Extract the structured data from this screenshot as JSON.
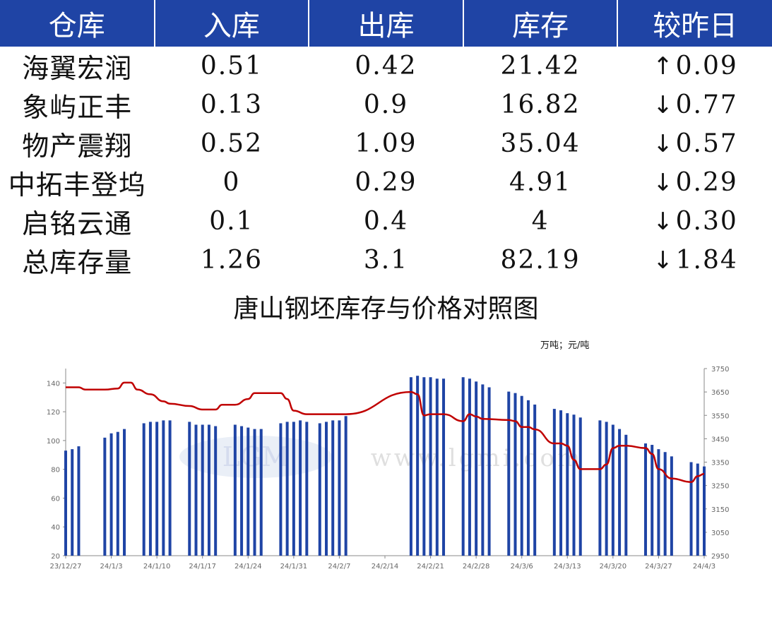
{
  "table": {
    "headers": [
      "仓库",
      "入库",
      "出库",
      "库存",
      "较昨日"
    ],
    "rows": [
      {
        "name": "海翼宏润",
        "in": "0.51",
        "out": "0.42",
        "stock": "21.42",
        "dir": "up",
        "arrow": "↑",
        "change": "0.09"
      },
      {
        "name": "象屿正丰",
        "in": "0.13",
        "out": "0.9",
        "stock": "16.82",
        "dir": "down",
        "arrow": "↓",
        "change": "0.77"
      },
      {
        "name": "物产震翔",
        "in": "0.52",
        "out": "1.09",
        "stock": "35.04",
        "dir": "down",
        "arrow": "↓",
        "change": "0.57"
      },
      {
        "name": "中拓丰登坞",
        "in": "0",
        "out": "0.29",
        "stock": "4.91",
        "dir": "down",
        "arrow": "↓",
        "change": "0.29"
      },
      {
        "name": "启铭云通",
        "in": "0.1",
        "out": "0.4",
        "stock": "4",
        "dir": "down",
        "arrow": "↓",
        "change": "0.30"
      },
      {
        "name": "总库存量",
        "in": "1.26",
        "out": "3.1",
        "stock": "82.19",
        "dir": "down",
        "arrow": "↓",
        "change": "1.84"
      }
    ],
    "colors": {
      "header_bg": "#1f44a5",
      "up": "#e00000",
      "down": "#1aa64a"
    }
  },
  "chart_data": {
    "type": "bar+line",
    "title": "唐山钢坯库存与价格对照图",
    "unit_label": "万吨；元/吨",
    "watermark": {
      "logo_text": "LGM",
      "url_text": "www.lgmi.com"
    },
    "x_ticks": [
      "23/12/27",
      "24/1/3",
      "24/1/10",
      "24/1/17",
      "24/1/24",
      "24/1/31",
      "24/2/7",
      "24/2/14",
      "24/2/21",
      "24/2/28",
      "24/3/6",
      "24/3/13",
      "24/3/20",
      "24/3/27",
      "24/4/3"
    ],
    "x_range": [
      "2023-12-27",
      "2024-04-03"
    ],
    "y_left": {
      "min": 20,
      "max": 150,
      "ticks": [
        20,
        40,
        60,
        80,
        100,
        120,
        140
      ]
    },
    "y_right": {
      "min": 2950,
      "max": 3750,
      "ticks": [
        2950,
        3050,
        3150,
        3250,
        3350,
        3450,
        3550,
        3650,
        3750
      ]
    },
    "bar_color": "#1f44a5",
    "line_color": "#c00000",
    "bars": [
      {
        "date": "2023-12-27",
        "value": 93
      },
      {
        "date": "2023-12-28",
        "value": 94
      },
      {
        "date": "2023-12-29",
        "value": 96
      },
      {
        "date": "2024-01-02",
        "value": 102
      },
      {
        "date": "2024-01-03",
        "value": 105
      },
      {
        "date": "2024-01-04",
        "value": 106
      },
      {
        "date": "2024-01-05",
        "value": 108
      },
      {
        "date": "2024-01-08",
        "value": 112
      },
      {
        "date": "2024-01-09",
        "value": 113
      },
      {
        "date": "2024-01-10",
        "value": 113
      },
      {
        "date": "2024-01-11",
        "value": 114
      },
      {
        "date": "2024-01-12",
        "value": 114
      },
      {
        "date": "2024-01-15",
        "value": 113
      },
      {
        "date": "2024-01-16",
        "value": 111
      },
      {
        "date": "2024-01-17",
        "value": 111
      },
      {
        "date": "2024-01-18",
        "value": 111
      },
      {
        "date": "2024-01-19",
        "value": 110
      },
      {
        "date": "2024-01-22",
        "value": 111
      },
      {
        "date": "2024-01-23",
        "value": 110
      },
      {
        "date": "2024-01-24",
        "value": 109
      },
      {
        "date": "2024-01-25",
        "value": 108
      },
      {
        "date": "2024-01-26",
        "value": 108
      },
      {
        "date": "2024-01-29",
        "value": 112
      },
      {
        "date": "2024-01-30",
        "value": 113
      },
      {
        "date": "2024-01-31",
        "value": 113
      },
      {
        "date": "2024-02-01",
        "value": 114
      },
      {
        "date": "2024-02-02",
        "value": 113
      },
      {
        "date": "2024-02-04",
        "value": 112
      },
      {
        "date": "2024-02-05",
        "value": 113
      },
      {
        "date": "2024-02-06",
        "value": 114
      },
      {
        "date": "2024-02-07",
        "value": 114
      },
      {
        "date": "2024-02-08",
        "value": 117
      },
      {
        "date": "2024-02-18",
        "value": 144
      },
      {
        "date": "2024-02-19",
        "value": 145
      },
      {
        "date": "2024-02-20",
        "value": 144
      },
      {
        "date": "2024-02-21",
        "value": 144
      },
      {
        "date": "2024-02-22",
        "value": 143
      },
      {
        "date": "2024-02-23",
        "value": 143
      },
      {
        "date": "2024-02-26",
        "value": 144
      },
      {
        "date": "2024-02-27",
        "value": 143
      },
      {
        "date": "2024-02-28",
        "value": 141
      },
      {
        "date": "2024-02-29",
        "value": 139
      },
      {
        "date": "2024-03-01",
        "value": 137
      },
      {
        "date": "2024-03-04",
        "value": 134
      },
      {
        "date": "2024-03-05",
        "value": 133
      },
      {
        "date": "2024-03-06",
        "value": 131
      },
      {
        "date": "2024-03-07",
        "value": 128
      },
      {
        "date": "2024-03-08",
        "value": 125
      },
      {
        "date": "2024-03-11",
        "value": 122
      },
      {
        "date": "2024-03-12",
        "value": 121
      },
      {
        "date": "2024-03-13",
        "value": 119
      },
      {
        "date": "2024-03-14",
        "value": 118
      },
      {
        "date": "2024-03-15",
        "value": 116
      },
      {
        "date": "2024-03-18",
        "value": 114
      },
      {
        "date": "2024-03-19",
        "value": 113
      },
      {
        "date": "2024-03-20",
        "value": 111
      },
      {
        "date": "2024-03-21",
        "value": 108
      },
      {
        "date": "2024-03-22",
        "value": 104
      },
      {
        "date": "2024-03-25",
        "value": 98
      },
      {
        "date": "2024-03-26",
        "value": 97
      },
      {
        "date": "2024-03-27",
        "value": 94
      },
      {
        "date": "2024-03-28",
        "value": 92
      },
      {
        "date": "2024-03-29",
        "value": 89
      },
      {
        "date": "2024-04-01",
        "value": 85
      },
      {
        "date": "2024-04-02",
        "value": 84
      },
      {
        "date": "2024-04-03",
        "value": 82
      }
    ],
    "price_line": [
      {
        "date": "2023-12-27",
        "value": 3670
      },
      {
        "date": "2023-12-29",
        "value": 3670
      },
      {
        "date": "2023-12-30",
        "value": 3660
      },
      {
        "date": "2024-01-02",
        "value": 3660
      },
      {
        "date": "2024-01-04",
        "value": 3665
      },
      {
        "date": "2024-01-05",
        "value": 3690
      },
      {
        "date": "2024-01-06",
        "value": 3690
      },
      {
        "date": "2024-01-07",
        "value": 3660
      },
      {
        "date": "2024-01-09",
        "value": 3640
      },
      {
        "date": "2024-01-11",
        "value": 3610
      },
      {
        "date": "2024-01-12",
        "value": 3600
      },
      {
        "date": "2024-01-15",
        "value": 3590
      },
      {
        "date": "2024-01-17",
        "value": 3575
      },
      {
        "date": "2024-01-19",
        "value": 3575
      },
      {
        "date": "2024-01-20",
        "value": 3595
      },
      {
        "date": "2024-01-22",
        "value": 3595
      },
      {
        "date": "2024-01-24",
        "value": 3620
      },
      {
        "date": "2024-01-25",
        "value": 3645
      },
      {
        "date": "2024-01-26",
        "value": 3645
      },
      {
        "date": "2024-01-29",
        "value": 3645
      },
      {
        "date": "2024-01-30",
        "value": 3620
      },
      {
        "date": "2024-01-31",
        "value": 3570
      },
      {
        "date": "2024-02-02",
        "value": 3555
      },
      {
        "date": "2024-02-08",
        "value": 3555
      },
      {
        "date": "2024-02-18",
        "value": 3650
      },
      {
        "date": "2024-02-19",
        "value": 3640
      },
      {
        "date": "2024-02-20",
        "value": 3550
      },
      {
        "date": "2024-02-21",
        "value": 3555
      },
      {
        "date": "2024-02-23",
        "value": 3555
      },
      {
        "date": "2024-02-26",
        "value": 3525
      },
      {
        "date": "2024-02-27",
        "value": 3555
      },
      {
        "date": "2024-02-28",
        "value": 3545
      },
      {
        "date": "2024-02-29",
        "value": 3535
      },
      {
        "date": "2024-03-04",
        "value": 3530
      },
      {
        "date": "2024-03-05",
        "value": 3525
      },
      {
        "date": "2024-03-06",
        "value": 3500
      },
      {
        "date": "2024-03-07",
        "value": 3500
      },
      {
        "date": "2024-03-08",
        "value": 3490
      },
      {
        "date": "2024-03-11",
        "value": 3430
      },
      {
        "date": "2024-03-12",
        "value": 3430
      },
      {
        "date": "2024-03-13",
        "value": 3420
      },
      {
        "date": "2024-03-14",
        "value": 3360
      },
      {
        "date": "2024-03-15",
        "value": 3320
      },
      {
        "date": "2024-03-18",
        "value": 3320
      },
      {
        "date": "2024-03-19",
        "value": 3340
      },
      {
        "date": "2024-03-20",
        "value": 3410
      },
      {
        "date": "2024-03-21",
        "value": 3420
      },
      {
        "date": "2024-03-22",
        "value": 3420
      },
      {
        "date": "2024-03-25",
        "value": 3410
      },
      {
        "date": "2024-03-26",
        "value": 3385
      },
      {
        "date": "2024-03-27",
        "value": 3320
      },
      {
        "date": "2024-03-29",
        "value": 3280
      },
      {
        "date": "2024-04-01",
        "value": 3265
      },
      {
        "date": "2024-04-02",
        "value": 3290
      },
      {
        "date": "2024-04-03",
        "value": 3300
      }
    ]
  }
}
